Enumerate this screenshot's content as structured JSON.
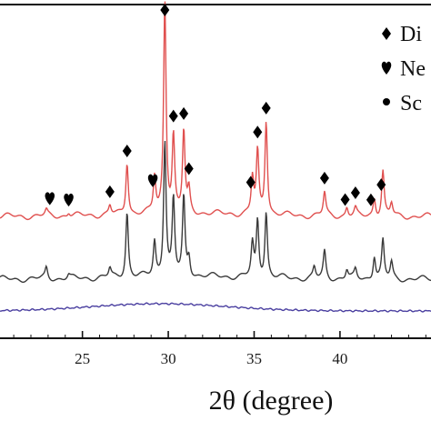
{
  "chart_data": {
    "type": "line",
    "xlabel": "2θ (degree)",
    "ylabel": "",
    "xlim": [
      20.2,
      45.3
    ],
    "x_ticks": [
      25,
      30,
      35,
      40
    ],
    "x_tick_labels": [
      "25",
      "30",
      "35",
      "40"
    ],
    "grid": false,
    "legend": {
      "placement": "top-right",
      "entries": [
        {
          "marker": "diamond",
          "label": "Di"
        },
        {
          "marker": "heart",
          "label": "Ne"
        },
        {
          "marker": "circle",
          "label": "Sc"
        }
      ]
    },
    "series": [
      {
        "color": "#e0504f",
        "peaks": [
          [
            22.9,
            6
          ],
          [
            24.2,
            4
          ],
          [
            26.6,
            10
          ],
          [
            27.6,
            58
          ],
          [
            29.2,
            40
          ],
          [
            29.8,
            235
          ],
          [
            30.3,
            84
          ],
          [
            30.9,
            90
          ],
          [
            31.2,
            24
          ],
          [
            34.9,
            40
          ],
          [
            35.2,
            68
          ],
          [
            35.7,
            104
          ],
          [
            39.1,
            26
          ],
          [
            40.4,
            10
          ],
          [
            40.9,
            8
          ],
          [
            42.0,
            20
          ],
          [
            42.5,
            50
          ],
          [
            43.0,
            14
          ]
        ],
        "markers": [
          {
            "type": "heart",
            "x": 23.1
          },
          {
            "type": "heart",
            "x": 24.2
          },
          {
            "type": "diamond",
            "x": 26.6
          },
          {
            "type": "diamond",
            "x": 27.6
          },
          {
            "type": "heart",
            "x": 29.1
          },
          {
            "type": "diamond",
            "x": 29.8
          },
          {
            "type": "diamond",
            "x": 30.3
          },
          {
            "type": "diamond",
            "x": 30.9
          },
          {
            "type": "diamond",
            "x": 31.2
          },
          {
            "type": "diamond",
            "x": 34.8
          },
          {
            "type": "diamond",
            "x": 35.2
          },
          {
            "type": "diamond",
            "x": 35.7
          },
          {
            "type": "diamond",
            "x": 39.1
          },
          {
            "type": "diamond",
            "x": 40.3
          },
          {
            "type": "diamond",
            "x": 40.9
          },
          {
            "type": "diamond",
            "x": 41.8
          },
          {
            "type": "diamond",
            "x": 42.4
          }
        ]
      },
      {
        "color": "#3a3a3a",
        "peaks": [
          [
            22.9,
            12
          ],
          [
            24.2,
            4
          ],
          [
            26.6,
            10
          ],
          [
            27.6,
            72
          ],
          [
            29.2,
            38
          ],
          [
            29.8,
            150
          ],
          [
            30.3,
            84
          ],
          [
            30.9,
            86
          ],
          [
            31.2,
            20
          ],
          [
            34.9,
            36
          ],
          [
            35.2,
            62
          ],
          [
            35.7,
            72
          ],
          [
            38.5,
            12
          ],
          [
            39.1,
            30
          ],
          [
            40.4,
            10
          ],
          [
            40.9,
            10
          ],
          [
            42.0,
            26
          ],
          [
            42.5,
            42
          ],
          [
            43.0,
            18
          ]
        ]
      },
      {
        "color": "#4a3fa0",
        "hump": {
          "center": 29.5,
          "height": 8,
          "width": 5.5
        }
      }
    ]
  }
}
